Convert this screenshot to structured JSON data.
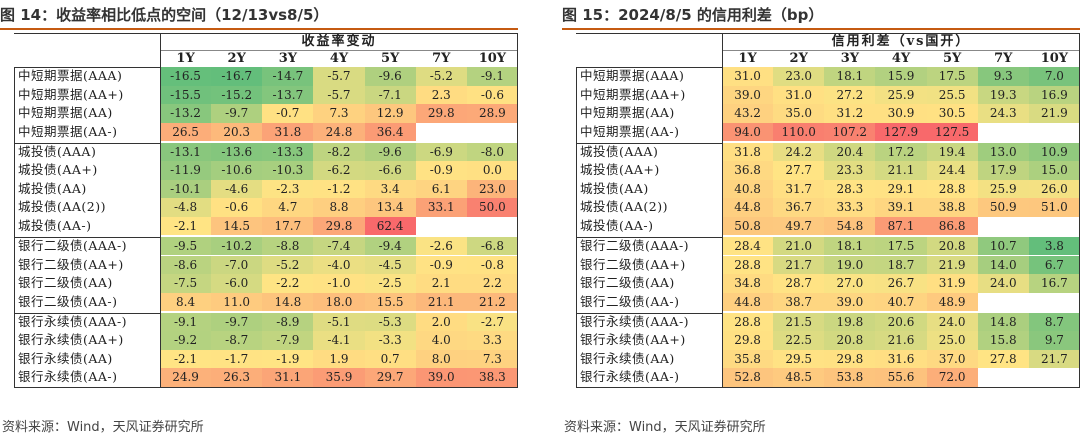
{
  "source_note": "资料来源：Wind，天风证券研究所",
  "chart_data": [
    {
      "type": "table",
      "title": "图 14：收益率相比低点的空间（12/13vs8/5）",
      "header_group": "收益率变动",
      "columns": [
        "1Y",
        "2Y",
        "3Y",
        "4Y",
        "5Y",
        "7Y",
        "10Y"
      ],
      "groups": [
        {
          "rows": [
            {
              "label": "中短期票据(AAA)",
              "values": [
                -16.5,
                -16.7,
                -14.7,
                -5.7,
                -9.6,
                -5.2,
                -9.1
              ]
            },
            {
              "label": "中短期票据(AA+)",
              "values": [
                -15.5,
                -15.2,
                -13.7,
                -5.7,
                -7.1,
                2.3,
                -0.6
              ]
            },
            {
              "label": "中短期票据(AA)",
              "values": [
                -13.2,
                -9.7,
                -0.7,
                7.3,
                12.9,
                29.8,
                28.9
              ]
            },
            {
              "label": "中短期票据(AA-)",
              "values": [
                26.5,
                20.3,
                31.8,
                24.8,
                36.4,
                null,
                null
              ]
            }
          ]
        },
        {
          "rows": [
            {
              "label": "城投债(AAA)",
              "values": [
                -13.1,
                -13.6,
                -13.3,
                -8.2,
                -9.6,
                -6.9,
                -8.0
              ]
            },
            {
              "label": "城投债(AA+)",
              "values": [
                -11.9,
                -10.6,
                -10.3,
                -6.2,
                -6.6,
                -0.9,
                0.0
              ]
            },
            {
              "label": "城投债(AA)",
              "values": [
                -10.1,
                -4.6,
                -2.3,
                -1.2,
                3.4,
                6.1,
                23.0
              ]
            },
            {
              "label": "城投债(AA(2))",
              "values": [
                -4.8,
                -0.6,
                4.7,
                8.8,
                13.4,
                33.1,
                50.0
              ]
            },
            {
              "label": "城投债(AA-)",
              "values": [
                -2.1,
                14.5,
                17.7,
                29.8,
                62.4,
                null,
                null
              ]
            }
          ]
        },
        {
          "rows": [
            {
              "label": "银行二级债(AAA-)",
              "values": [
                -9.5,
                -10.2,
                -8.8,
                -7.4,
                -9.4,
                -2.6,
                -6.8
              ]
            },
            {
              "label": "银行二级债(AA+)",
              "values": [
                -8.6,
                -7.0,
                -5.2,
                -4.0,
                -4.5,
                -0.9,
                -0.8
              ]
            },
            {
              "label": "银行二级债(AA)",
              "values": [
                -7.5,
                -6.0,
                -2.2,
                -1.0,
                -2.5,
                2.1,
                2.2
              ]
            },
            {
              "label": "银行二级债(AA-)",
              "values": [
                8.4,
                11.0,
                14.8,
                18.0,
                15.5,
                21.1,
                21.2
              ]
            }
          ]
        },
        {
          "rows": [
            {
              "label": "银行永续债(AAA-)",
              "values": [
                -9.1,
                -9.7,
                -8.9,
                -5.1,
                -5.3,
                2.0,
                -2.7
              ]
            },
            {
              "label": "银行永续债(AA+)",
              "values": [
                -9.2,
                -8.7,
                -7.9,
                -4.1,
                -3.3,
                4.0,
                3.3
              ]
            },
            {
              "label": "银行永续债(AA)",
              "values": [
                -2.1,
                -1.7,
                -1.9,
                1.9,
                0.7,
                8.0,
                7.3
              ]
            },
            {
              "label": "银行永续债(AA-)",
              "values": [
                24.9,
                26.3,
                31.1,
                35.9,
                29.7,
                39.0,
                38.3
              ]
            }
          ]
        }
      ]
    },
    {
      "type": "table",
      "title": "图 15：2024/8/5 的信用利差（bp）",
      "header_group": "信用利差（vs国开）",
      "columns": [
        "1Y",
        "2Y",
        "3Y",
        "4Y",
        "5Y",
        "7Y",
        "10Y"
      ],
      "groups": [
        {
          "rows": [
            {
              "label": "中短期票据(AAA)",
              "values": [
                31.0,
                23.0,
                18.1,
                15.9,
                17.5,
                9.3,
                7.0
              ]
            },
            {
              "label": "中短期票据(AA+)",
              "values": [
                39.0,
                31.0,
                27.2,
                25.9,
                25.5,
                19.3,
                16.9
              ]
            },
            {
              "label": "中短期票据(AA)",
              "values": [
                43.2,
                35.0,
                31.2,
                30.9,
                30.5,
                24.3,
                21.9
              ]
            },
            {
              "label": "中短期票据(AA-)",
              "values": [
                94.0,
                110.0,
                107.2,
                127.9,
                127.5,
                null,
                null
              ]
            }
          ]
        },
        {
          "rows": [
            {
              "label": "城投债(AAA)",
              "values": [
                31.8,
                24.2,
                20.4,
                17.2,
                19.4,
                13.0,
                10.9
              ]
            },
            {
              "label": "城投债(AA+)",
              "values": [
                36.8,
                27.7,
                23.3,
                21.1,
                24.4,
                17.9,
                15.0
              ]
            },
            {
              "label": "城投债(AA)",
              "values": [
                40.8,
                31.7,
                28.3,
                29.1,
                28.8,
                25.9,
                26.0
              ]
            },
            {
              "label": "城投债(AA(2))",
              "values": [
                44.8,
                36.7,
                33.3,
                39.1,
                38.8,
                50.9,
                51.0
              ]
            },
            {
              "label": "城投债(AA-)",
              "values": [
                50.8,
                49.7,
                54.8,
                87.1,
                86.8,
                null,
                null
              ]
            }
          ]
        },
        {
          "rows": [
            {
              "label": "银行二级债(AAA-)",
              "values": [
                28.4,
                21.0,
                18.1,
                17.5,
                20.8,
                10.7,
                3.8
              ]
            },
            {
              "label": "银行二级债(AA+)",
              "values": [
                28.8,
                21.7,
                19.0,
                18.7,
                21.9,
                14.0,
                6.7
              ]
            },
            {
              "label": "银行二级债(AA)",
              "values": [
                34.8,
                28.7,
                27.0,
                26.7,
                31.9,
                24.0,
                16.7
              ]
            },
            {
              "label": "银行二级债(AA-)",
              "values": [
                44.8,
                38.7,
                39.0,
                40.7,
                48.9,
                null,
                null
              ]
            }
          ]
        },
        {
          "rows": [
            {
              "label": "银行永续债(AAA-)",
              "values": [
                28.8,
                21.5,
                19.8,
                20.6,
                24.0,
                14.8,
                8.7
              ]
            },
            {
              "label": "银行永续债(AA+)",
              "values": [
                29.8,
                22.5,
                20.8,
                21.6,
                25.0,
                15.8,
                9.7
              ]
            },
            {
              "label": "银行永续债(AA)",
              "values": [
                35.8,
                29.5,
                29.8,
                31.6,
                37.0,
                27.8,
                21.7
              ]
            },
            {
              "label": "银行永续债(AA-)",
              "values": [
                52.8,
                48.5,
                53.8,
                55.6,
                72.0,
                null,
                null
              ]
            }
          ]
        }
      ]
    }
  ]
}
